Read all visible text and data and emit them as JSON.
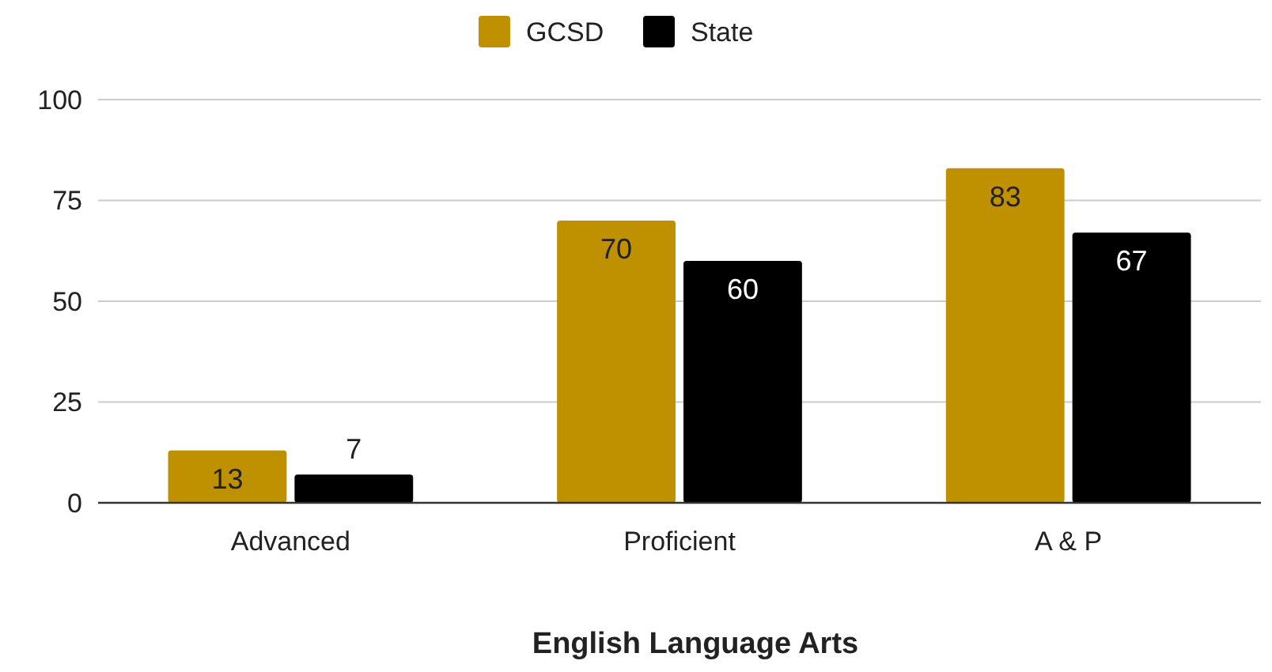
{
  "chart_data": {
    "type": "bar",
    "xlabel": "English Language Arts",
    "categories": [
      "Advanced",
      "Proficient",
      "A & P"
    ],
    "series": [
      {
        "name": "GCSD",
        "color": "#bf9000",
        "values": [
          13,
          70,
          83
        ]
      },
      {
        "name": "State",
        "color": "#000000",
        "values": [
          7,
          60,
          67
        ]
      }
    ],
    "ylim": [
      0,
      100
    ],
    "yticks": [
      0,
      25,
      50,
      75,
      100
    ],
    "grid": "y",
    "legend": "top",
    "data_labels": true
  }
}
